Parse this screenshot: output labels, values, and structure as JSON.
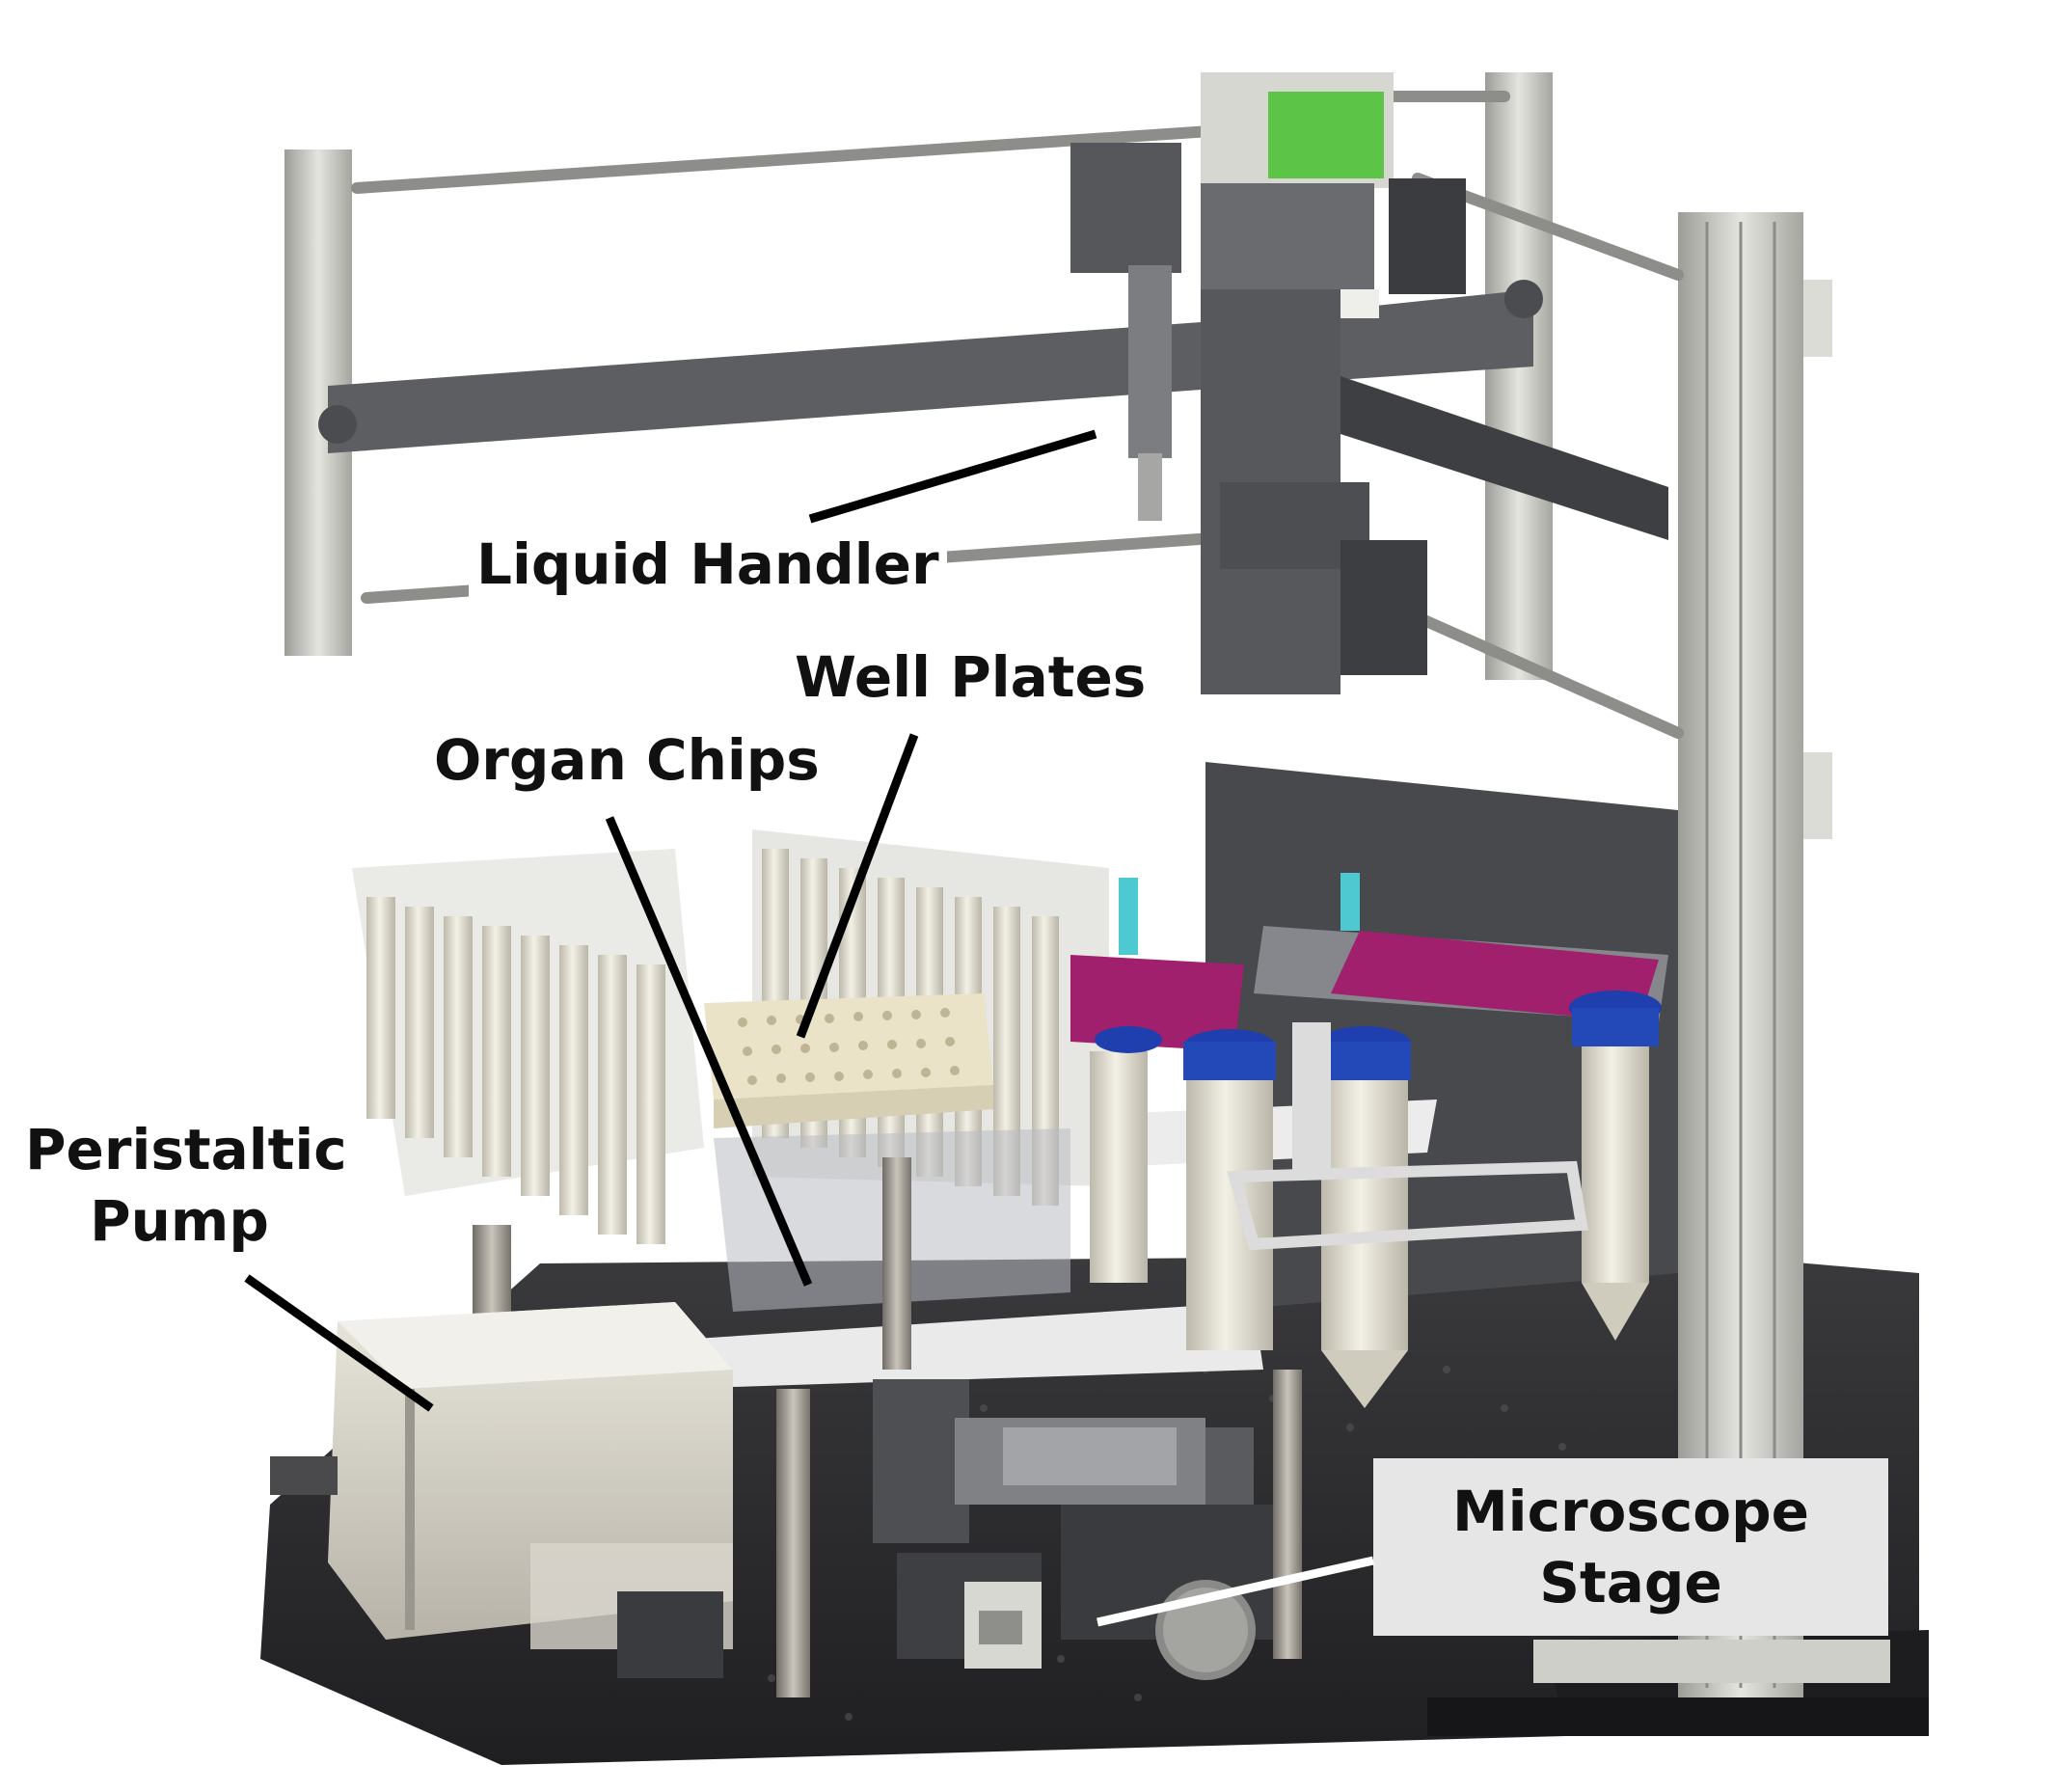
{
  "labels": {
    "liquid_handler": "Liquid Handler",
    "well_plates": "Well Plates",
    "organ_chips": "Organ Chips",
    "peristaltic_pump_line1": "Peristaltic",
    "peristaltic_pump_line2": "Pump",
    "microscope_stage_line1": "Microscope",
    "microscope_stage_line2": "Stage"
  },
  "colors": {
    "frame_silver": "#c9c9c4",
    "frame_dark": "#5f6164",
    "table_black": "#2b2b2e",
    "magenta_plate": "#a0206e",
    "blue_cap": "#1f3fae",
    "cyan_tip": "#4fc9d1",
    "green_board": "#5cc447",
    "tube_cream": "#ebe7d9",
    "leader_line": "#000000"
  }
}
